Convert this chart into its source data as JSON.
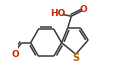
{
  "bg_color": "#ffffff",
  "bond_color": "#3a3a3a",
  "lw": 1.1,
  "dbo": 0.025,
  "fs": 6.5,
  "oc": "#cc2200",
  "sc": "#bb6600",
  "fig_w": 1.25,
  "fig_h": 0.81,
  "xlim": [
    0.0,
    1.0
  ],
  "ylim": [
    0.05,
    0.95
  ]
}
